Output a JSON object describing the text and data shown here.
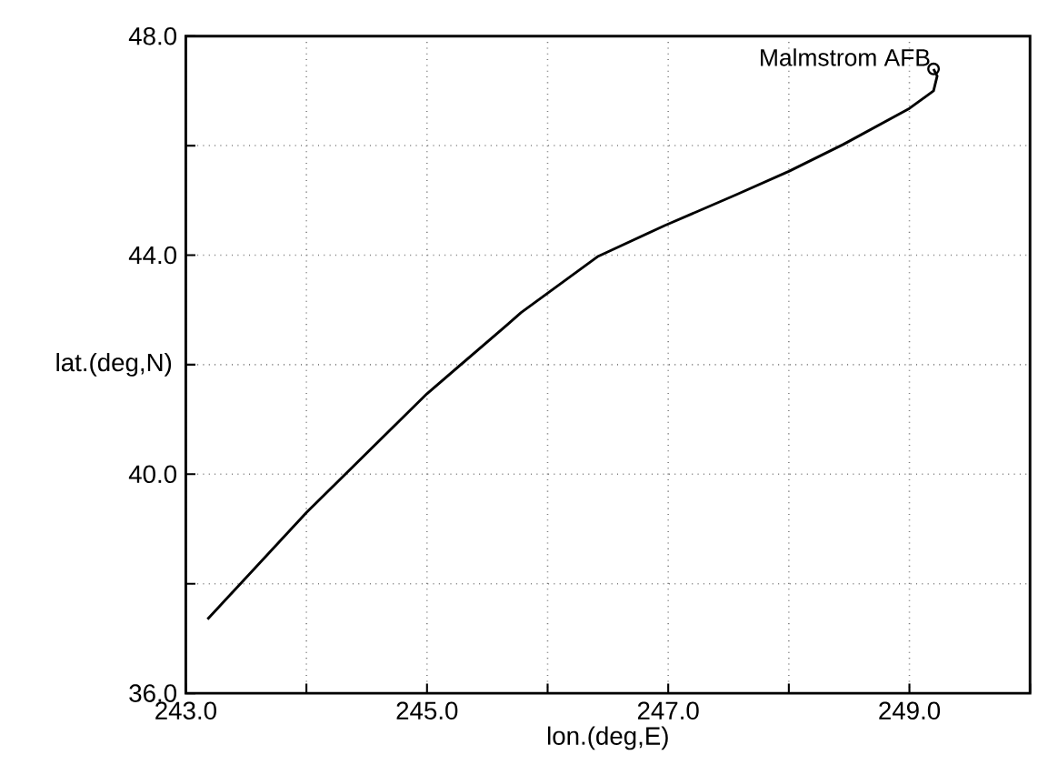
{
  "chart_data": {
    "type": "line",
    "xlabel": "lon.(deg,E)",
    "ylabel": "lat.(deg,N)",
    "xlim": [
      243,
      250
    ],
    "ylim": [
      36,
      48
    ],
    "xticks": [
      {
        "value": 243,
        "label": "243.0"
      },
      {
        "value": 244,
        "label": null
      },
      {
        "value": 245,
        "label": "245.0"
      },
      {
        "value": 246,
        "label": null
      },
      {
        "value": 247,
        "label": "247.0"
      },
      {
        "value": 248,
        "label": null
      },
      {
        "value": 249,
        "label": "249.0"
      },
      {
        "value": 250,
        "label": null
      }
    ],
    "yticks": [
      {
        "value": 36,
        "label": "36.0"
      },
      {
        "value": 38,
        "label": null
      },
      {
        "value": 40,
        "label": "40.0"
      },
      {
        "value": 42,
        "label": null
      },
      {
        "value": 44,
        "label": "44.0"
      },
      {
        "value": 46,
        "label": null
      },
      {
        "value": 48,
        "label": "48.0"
      }
    ],
    "grid": true,
    "line_style": "solid",
    "marker": "none",
    "series": [
      {
        "color": "#000000",
        "x": [
          243.18,
          244.0,
          245.0,
          245.66,
          245.78,
          246.42,
          246.97,
          247.56,
          248.0,
          248.45,
          249.0,
          249.2,
          249.23,
          249.2
        ],
        "values": [
          37.35,
          39.3,
          41.47,
          42.72,
          42.95,
          43.98,
          44.54,
          45.1,
          45.53,
          46.02,
          46.68,
          47.0,
          47.27,
          47.4
        ]
      },
      {
        "type": "scatter",
        "marker": "circle",
        "color": "#000000",
        "x": [
          249.2
        ],
        "values": [
          47.4
        ]
      }
    ],
    "annotations": [
      {
        "text": "Malmstrom AFB",
        "x": 249.2,
        "y": 47.4
      }
    ]
  }
}
